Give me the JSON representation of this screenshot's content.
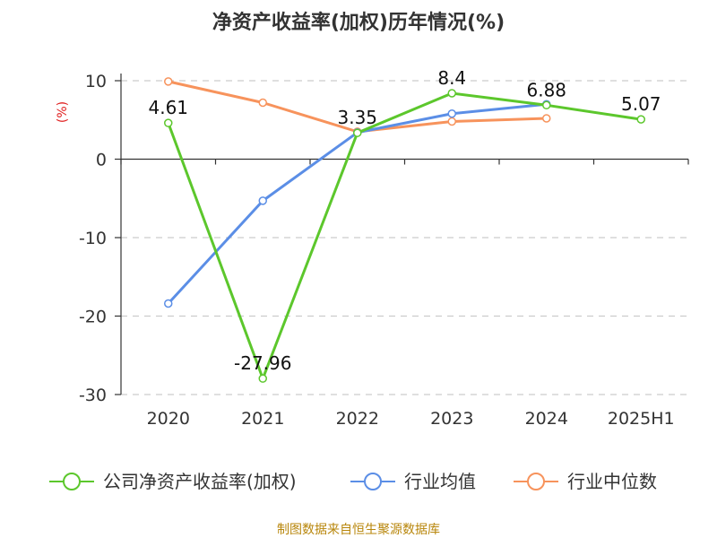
{
  "chart_data": {
    "type": "line",
    "title": "净资产收益率(加权)历年情况(%)",
    "ylabel": "(%)",
    "categories": [
      "2020",
      "2021",
      "2022",
      "2023",
      "2024",
      "2025H1"
    ],
    "yticks": [
      "10",
      "0",
      "-10",
      "-20",
      "-30"
    ],
    "ylim": [
      -30,
      10
    ],
    "grid": true,
    "legend_position": "bottom",
    "series": [
      {
        "name": "公司净资产收益率(加权)",
        "color": "#5cc72c",
        "values": [
          4.61,
          -27.96,
          3.35,
          8.4,
          6.88,
          5.07
        ],
        "labels": [
          "4.61",
          "-27.96",
          "3.35",
          "8.4",
          "6.88",
          "5.07"
        ]
      },
      {
        "name": "行业均值",
        "color": "#5b8ee6",
        "values": [
          -18.4,
          -5.3,
          3.4,
          5.8,
          7.0,
          null
        ]
      },
      {
        "name": "行业中位数",
        "color": "#f7935c",
        "values": [
          9.9,
          7.2,
          3.5,
          4.8,
          5.2,
          null
        ]
      }
    ],
    "source": "制图数据来自恒生聚源数据库"
  }
}
